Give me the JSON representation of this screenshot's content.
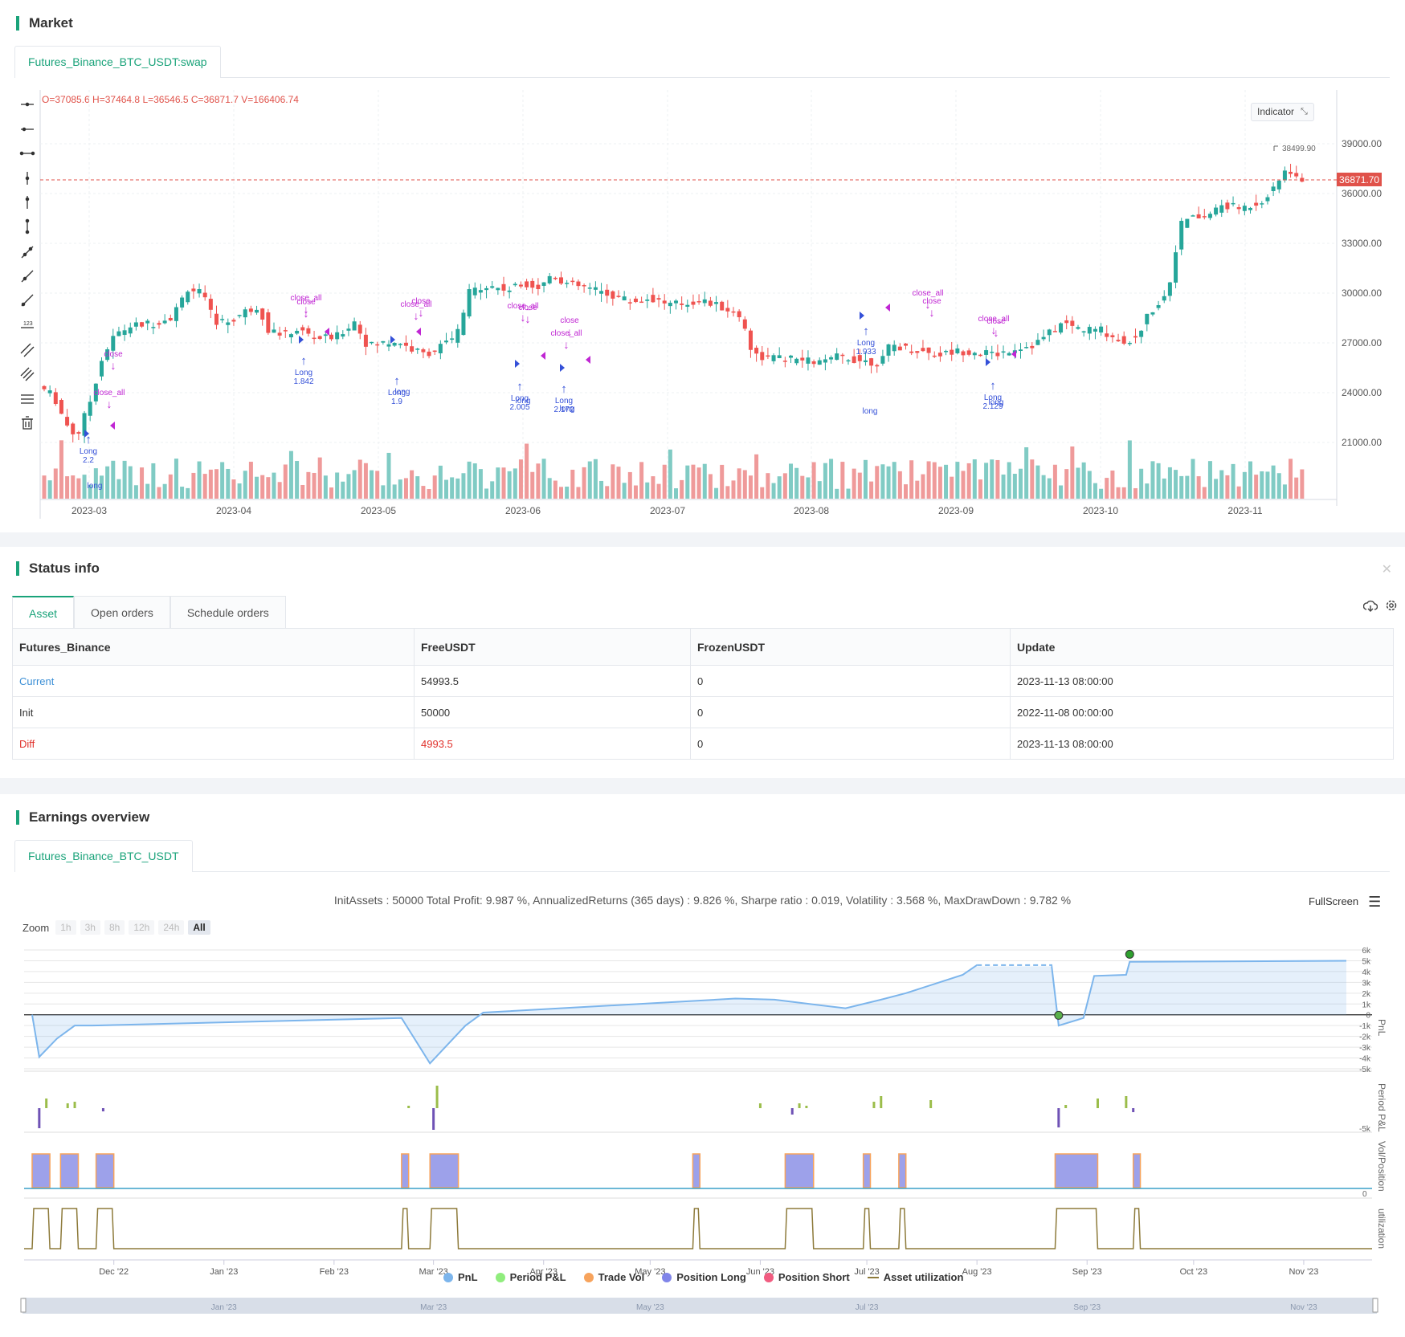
{
  "market": {
    "title": "Market",
    "tab": "Futures_Binance_BTC_USDT:swap",
    "ohlc": "O=37085.6 H=37464.8 L=36546.5 C=36871.7 V=166406.74",
    "indicator_button": "Indicator",
    "price_label": "36871.70",
    "max_label": "38499.90",
    "y_ticks": [
      "39000.00",
      "36000.00",
      "33000.00",
      "30000.00",
      "27000.00",
      "24000.00",
      "21000.00"
    ],
    "x_ticks": [
      "2023-03",
      "2023-04",
      "2023-05",
      "2023-06",
      "2023-07",
      "2023-08",
      "2023-09",
      "2023-10",
      "2023-11"
    ],
    "annotations": {
      "close": "close",
      "close_all": "close_all",
      "long": "long",
      "Long": "Long",
      "vals": [
        "2.2",
        "1.842",
        "1.9",
        "2.005",
        "2.172",
        "1.933",
        "2.129"
      ]
    },
    "toolbar": [
      "horizontal-line-icon",
      "horizontal-ray-icon",
      "horizontal-segment-icon",
      "vertical-line-icon",
      "vertical-ray-icon",
      "vertical-segment-icon",
      "trend-line-icon",
      "ray-line-icon",
      "extended-line-icon",
      "price-label-icon",
      "parallel-channel-icon",
      "fib-channel-icon",
      "fib-retracement-icon",
      "trash-icon"
    ]
  },
  "status": {
    "title": "Status info",
    "tabs": [
      "Asset",
      "Open orders",
      "Schedule orders"
    ],
    "columns": [
      "Futures_Binance",
      "FreeUSDT",
      "FrozenUSDT",
      "Update"
    ],
    "rows": [
      {
        "label": "Current",
        "free": "54993.5",
        "frozen": "0",
        "update": "2023-11-13 08:00:00"
      },
      {
        "label": "Init",
        "free": "50000",
        "frozen": "0",
        "update": "2022-11-08 00:00:00"
      },
      {
        "label": "Diff",
        "free": "4993.5",
        "frozen": "0",
        "update": "2023-11-13 08:00:00"
      }
    ]
  },
  "earnings": {
    "title": "Earnings overview",
    "tab": "Futures_Binance_BTC_USDT",
    "summary": "InitAssets : 50000 Total Profit: 9.987 %, AnnualizedReturns (365 days) : 9.826 %, Sharpe ratio : 0.019, Volatility : 3.568 %, MaxDrawDown : 9.782 %",
    "fullscreen": "FullScreen",
    "zoom_label": "Zoom",
    "zoom_options": [
      "1h",
      "3h",
      "8h",
      "12h",
      "24h",
      "All"
    ],
    "pnl_ticks": [
      "6k",
      "5k",
      "4k",
      "3k",
      "2k",
      "1k",
      "0",
      "-1k",
      "-2k",
      "-3k",
      "-4k",
      "-5k"
    ],
    "pnl_axis": "PnL",
    "period_axis": "Period P&L",
    "period_tick": "-5k",
    "vol_axis": "Vol/Position",
    "vol_tick": "0",
    "util_axis": "utilization",
    "x_ticks": [
      "Dec '22",
      "Jan '23",
      "Feb '23",
      "Mar '23",
      "Apr '23",
      "May '23",
      "Jun '23",
      "Jul '23",
      "Aug '23",
      "Sep '23",
      "Oct '23",
      "Nov '23"
    ],
    "nav_ticks": [
      "Jan '23",
      "Mar '23",
      "May '23",
      "Jul '23",
      "Sep '23",
      "Nov '23"
    ],
    "legend": [
      {
        "name": "PnL",
        "color": "#7cb5ec"
      },
      {
        "name": "Period P&L",
        "color": "#90ed7d"
      },
      {
        "name": "Trade Vol",
        "color": "#f7a35c"
      },
      {
        "name": "Position Long",
        "color": "#8085e9"
      },
      {
        "name": "Position Short",
        "color": "#f15c80"
      },
      {
        "name": "Asset utilization",
        "color": "#8d7a3a"
      }
    ]
  },
  "chart_data": {
    "type": "line",
    "series": [
      {
        "name": "PnL",
        "x": [
          "2022-11-08",
          "2022-11-10",
          "2022-11-15",
          "2022-11-20",
          "2022-11-25",
          "2023-02-20",
          "2023-02-28",
          "2023-03-10",
          "2023-03-15",
          "2023-05-25",
          "2023-06-05",
          "2023-06-25",
          "2023-07-05",
          "2023-07-12",
          "2023-07-28",
          "2023-08-01",
          "2023-08-22",
          "2023-08-24",
          "2023-08-31",
          "2023-09-03",
          "2023-09-12",
          "2023-09-13",
          "2023-11-13"
        ],
        "values": [
          0,
          -3900,
          -2200,
          -1000,
          -1000,
          -300,
          -4500,
          -1000,
          200,
          1500,
          1400,
          600,
          1400,
          2000,
          3700,
          4600,
          4600,
          -1000,
          -300,
          3600,
          3700,
          4900,
          4993.5
        ]
      }
    ],
    "ylim": [
      -5000,
      6000
    ]
  }
}
